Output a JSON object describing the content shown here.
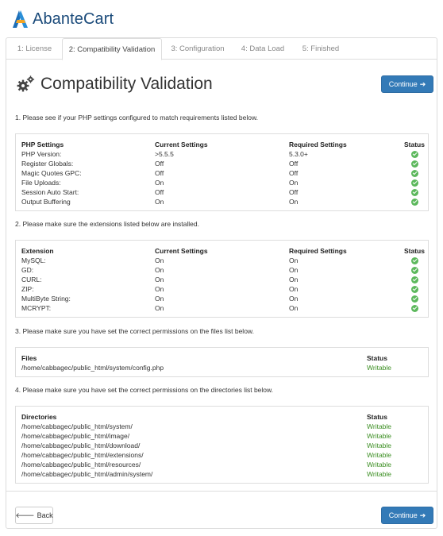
{
  "brand": {
    "name": "AbanteCart"
  },
  "tabs": [
    {
      "label": "1: License",
      "active": false
    },
    {
      "label": "2: Compatibility Validation",
      "active": true
    },
    {
      "label": "3: Configuration",
      "active": false
    },
    {
      "label": "4: Data Load",
      "active": false
    },
    {
      "label": "5: Finished",
      "active": false
    }
  ],
  "page": {
    "title": "Compatibility Validation",
    "title_icon": "gears-icon"
  },
  "buttons": {
    "continue": "Continue",
    "back": "Back"
  },
  "php": {
    "intro": "1. Please see if your PHP settings configured to match requirements listed below.",
    "headers": [
      "PHP Settings",
      "Current Settings",
      "Required Settings",
      "Status"
    ],
    "rows": [
      [
        "PHP Version:",
        ">5.5.5",
        "5.3.0+"
      ],
      [
        "Register Globals:",
        "Off",
        "Off"
      ],
      [
        "Magic Quotes GPC:",
        "Off",
        "Off"
      ],
      [
        "File Uploads:",
        "On",
        "On"
      ],
      [
        "Session Auto Start:",
        "Off",
        "Off"
      ],
      [
        "Output Buffering",
        "On",
        "On"
      ]
    ]
  },
  "extensions": {
    "intro": "2. Please make sure the extensions listed below are installed.",
    "headers": [
      "Extension",
      "Current Settings",
      "Required Settings",
      "Status"
    ],
    "rows": [
      [
        "MySQL:",
        "On",
        "On"
      ],
      [
        "GD:",
        "On",
        "On"
      ],
      [
        "CURL:",
        "On",
        "On"
      ],
      [
        "ZIP:",
        "On",
        "On"
      ],
      [
        "MultiByte String:",
        "On",
        "On"
      ],
      [
        "MCRYPT:",
        "On",
        "On"
      ]
    ]
  },
  "files": {
    "intro": "3. Please make sure you have set the correct permissions on the files list below.",
    "headers": [
      "Files",
      "Status"
    ],
    "rows": [
      [
        "/home/cabbagec/public_html/system/config.php",
        "Writable"
      ]
    ]
  },
  "directories": {
    "intro": "4. Please make sure you have set the correct permissions on the directories list below.",
    "headers": [
      "Directories",
      "Status"
    ],
    "rows": [
      [
        "/home/cabbagec/public_html/system/",
        "Writable"
      ],
      [
        "/home/cabbagec/public_html/image/",
        "Writable"
      ],
      [
        "/home/cabbagec/public_html/download/",
        "Writable"
      ],
      [
        "/home/cabbagec/public_html/extensions/",
        "Writable"
      ],
      [
        "/home/cabbagec/public_html/resources/",
        "Writable"
      ],
      [
        "/home/cabbagec/public_html/admin/system/",
        "Writable"
      ]
    ]
  },
  "colors": {
    "primary": "#337ab7",
    "ok": "#5cb85c",
    "writable": "#3c8f23",
    "brand": "#1a4a7a"
  }
}
